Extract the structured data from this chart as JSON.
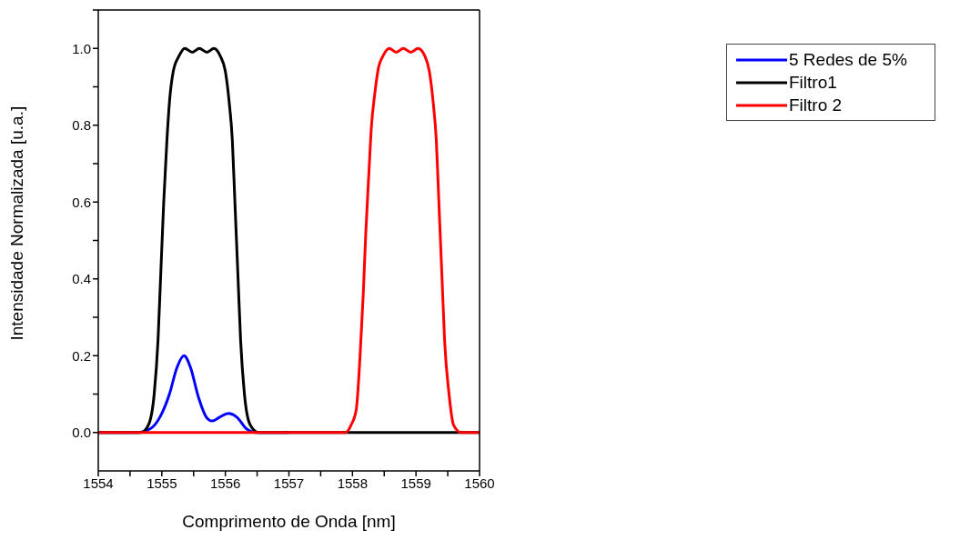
{
  "chart_data": {
    "type": "line",
    "xlabel": "Comprimento de Onda [nm]",
    "ylabel": "Intensidade Normalizada [u.a.]",
    "xlim": [
      1554,
      1560
    ],
    "ylim": [
      -0.1,
      1.1
    ],
    "xticks": [
      1554,
      {
        "value": 1554.5,
        "label": null
      },
      1555,
      {
        "value": 1555.5,
        "label": null
      },
      1556,
      {
        "value": 1556.5,
        "label": null
      },
      1557,
      {
        "value": 1557.5,
        "label": null
      },
      1558,
      {
        "value": 1558.5,
        "label": null
      },
      1559,
      {
        "value": 1559.5,
        "label": null
      },
      1560
    ],
    "yticks": [
      {
        "value": 0,
        "label": "0.0"
      },
      {
        "value": 0.1,
        "label": null
      },
      0.2,
      {
        "value": 0.3,
        "label": null
      },
      0.4,
      {
        "value": 0.5,
        "label": null
      },
      0.6,
      {
        "value": 0.7,
        "label": null
      },
      0.8,
      {
        "value": 0.9,
        "label": null
      },
      {
        "value": 1,
        "label": "1.0"
      },
      {
        "value": 1.1,
        "label": null
      }
    ],
    "grid": false,
    "legend": "top right",
    "marker": "none",
    "line_style": "solid",
    "series": [
      {
        "name": "5 Redes de 5%",
        "color": "#0000ff",
        "x": [
          1554,
          1554.61,
          1554.82,
          1554.97,
          1555.12,
          1555.24,
          1555.35,
          1555.45,
          1555.58,
          1555.7,
          1555.79,
          1555.91,
          1556.05,
          1556.18,
          1556.33,
          1556.48,
          1557
        ],
        "values": [
          0,
          0,
          0.01,
          0.04,
          0.1,
          0.17,
          0.2,
          0.17,
          0.09,
          0.04,
          0.03,
          0.04,
          0.05,
          0.04,
          0.01,
          0,
          0
        ]
      },
      {
        "name": "Filtro1",
        "color": "#000000",
        "x": [
          1554,
          1554.67,
          1554.79,
          1554.88,
          1554.94,
          1554.98,
          1555.03,
          1555.08,
          1555.12,
          1555.18,
          1555.27,
          1555.36,
          1555.48,
          1555.59,
          1555.71,
          1555.82,
          1555.92,
          1556,
          1556.06,
          1556.11,
          1556.15,
          1556.2,
          1556.24,
          1556.3,
          1556.39,
          1556.52,
          1557,
          1558,
          1559,
          1560
        ],
        "values": [
          0,
          0,
          0.02,
          0.1,
          0.24,
          0.4,
          0.6,
          0.76,
          0.86,
          0.94,
          0.98,
          1,
          0.99,
          1,
          0.99,
          1,
          0.98,
          0.94,
          0.86,
          0.76,
          0.6,
          0.4,
          0.24,
          0.1,
          0.02,
          0,
          0,
          0,
          0,
          0
        ]
      },
      {
        "name": "Filtro 2",
        "color": "#ff0000",
        "x": [
          1554,
          1555,
          1556,
          1557,
          1557.89,
          1557.98,
          1558.06,
          1558.12,
          1558.17,
          1558.21,
          1558.26,
          1558.3,
          1558.35,
          1558.41,
          1558.48,
          1558.58,
          1558.69,
          1558.8,
          1558.92,
          1559.03,
          1559.14,
          1559.21,
          1559.27,
          1559.32,
          1559.36,
          1559.41,
          1559.45,
          1559.52,
          1559.59,
          1559.71,
          1560
        ],
        "values": [
          0,
          0,
          0,
          0,
          0,
          0.02,
          0.06,
          0.2,
          0.36,
          0.52,
          0.68,
          0.8,
          0.88,
          0.95,
          0.98,
          1,
          0.99,
          1,
          0.99,
          1,
          0.98,
          0.94,
          0.86,
          0.76,
          0.6,
          0.4,
          0.24,
          0.1,
          0.02,
          0,
          0
        ]
      }
    ]
  }
}
